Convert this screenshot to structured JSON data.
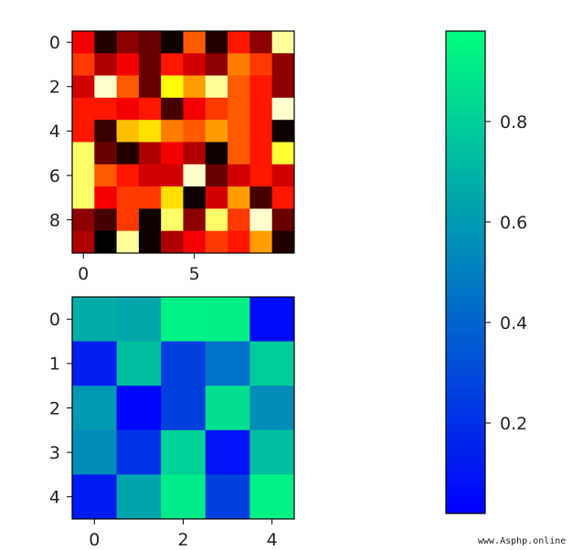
{
  "chart_data": [
    {
      "type": "heatmap",
      "colormap": "hot",
      "rows": 10,
      "cols": 10,
      "x_ticks": [
        "0",
        "5"
      ],
      "y_ticks": [
        "0",
        "2",
        "4",
        "6",
        "8"
      ],
      "values": [
        [
          0.35,
          0.05,
          0.2,
          0.15,
          0.02,
          0.5,
          0.05,
          0.4,
          0.2,
          0.9
        ],
        [
          0.45,
          0.25,
          0.35,
          0.15,
          0.4,
          0.3,
          0.2,
          0.55,
          0.45,
          0.2
        ],
        [
          0.3,
          0.95,
          0.5,
          0.15,
          0.75,
          0.6,
          0.9,
          0.5,
          0.4,
          0.2
        ],
        [
          0.4,
          0.4,
          0.35,
          0.4,
          0.1,
          0.35,
          0.45,
          0.5,
          0.4,
          0.95
        ],
        [
          0.4,
          0.08,
          0.65,
          0.7,
          0.55,
          0.5,
          0.6,
          0.5,
          0.4,
          0.02
        ],
        [
          0.85,
          0.15,
          0.05,
          0.25,
          0.35,
          0.25,
          0.02,
          0.5,
          0.4,
          0.8
        ],
        [
          0.85,
          0.5,
          0.4,
          0.3,
          0.3,
          0.95,
          0.15,
          0.3,
          0.4,
          0.3
        ],
        [
          0.85,
          0.35,
          0.45,
          0.45,
          0.7,
          0.02,
          0.3,
          0.6,
          0.1,
          0.4
        ],
        [
          0.2,
          0.1,
          0.45,
          0.02,
          0.85,
          0.2,
          0.85,
          0.45,
          0.95,
          0.15
        ],
        [
          0.25,
          0.0,
          0.9,
          0.02,
          0.25,
          0.35,
          0.45,
          0.4,
          0.6,
          0.05
        ]
      ]
    },
    {
      "type": "heatmap",
      "colormap": "winter",
      "rows": 5,
      "cols": 5,
      "x_ticks": [
        "0",
        "2",
        "4"
      ],
      "y_ticks": [
        "0",
        "1",
        "2",
        "3",
        "4"
      ],
      "values": [
        [
          0.68,
          0.66,
          0.95,
          0.94,
          0.04
        ],
        [
          0.12,
          0.75,
          0.25,
          0.45,
          0.8
        ],
        [
          0.6,
          0.03,
          0.25,
          0.88,
          0.55
        ],
        [
          0.55,
          0.2,
          0.82,
          0.08,
          0.75
        ],
        [
          0.1,
          0.65,
          0.92,
          0.25,
          0.95
        ]
      ]
    },
    {
      "type": "colorbar",
      "colormap": "winter",
      "range": [
        0.02,
        0.98
      ],
      "ticks": [
        0.2,
        0.4,
        0.6,
        0.8
      ],
      "tick_labels": [
        "0.2",
        "0.4",
        "0.6",
        "0.8"
      ]
    }
  ],
  "watermark": "www.Asphp.online"
}
